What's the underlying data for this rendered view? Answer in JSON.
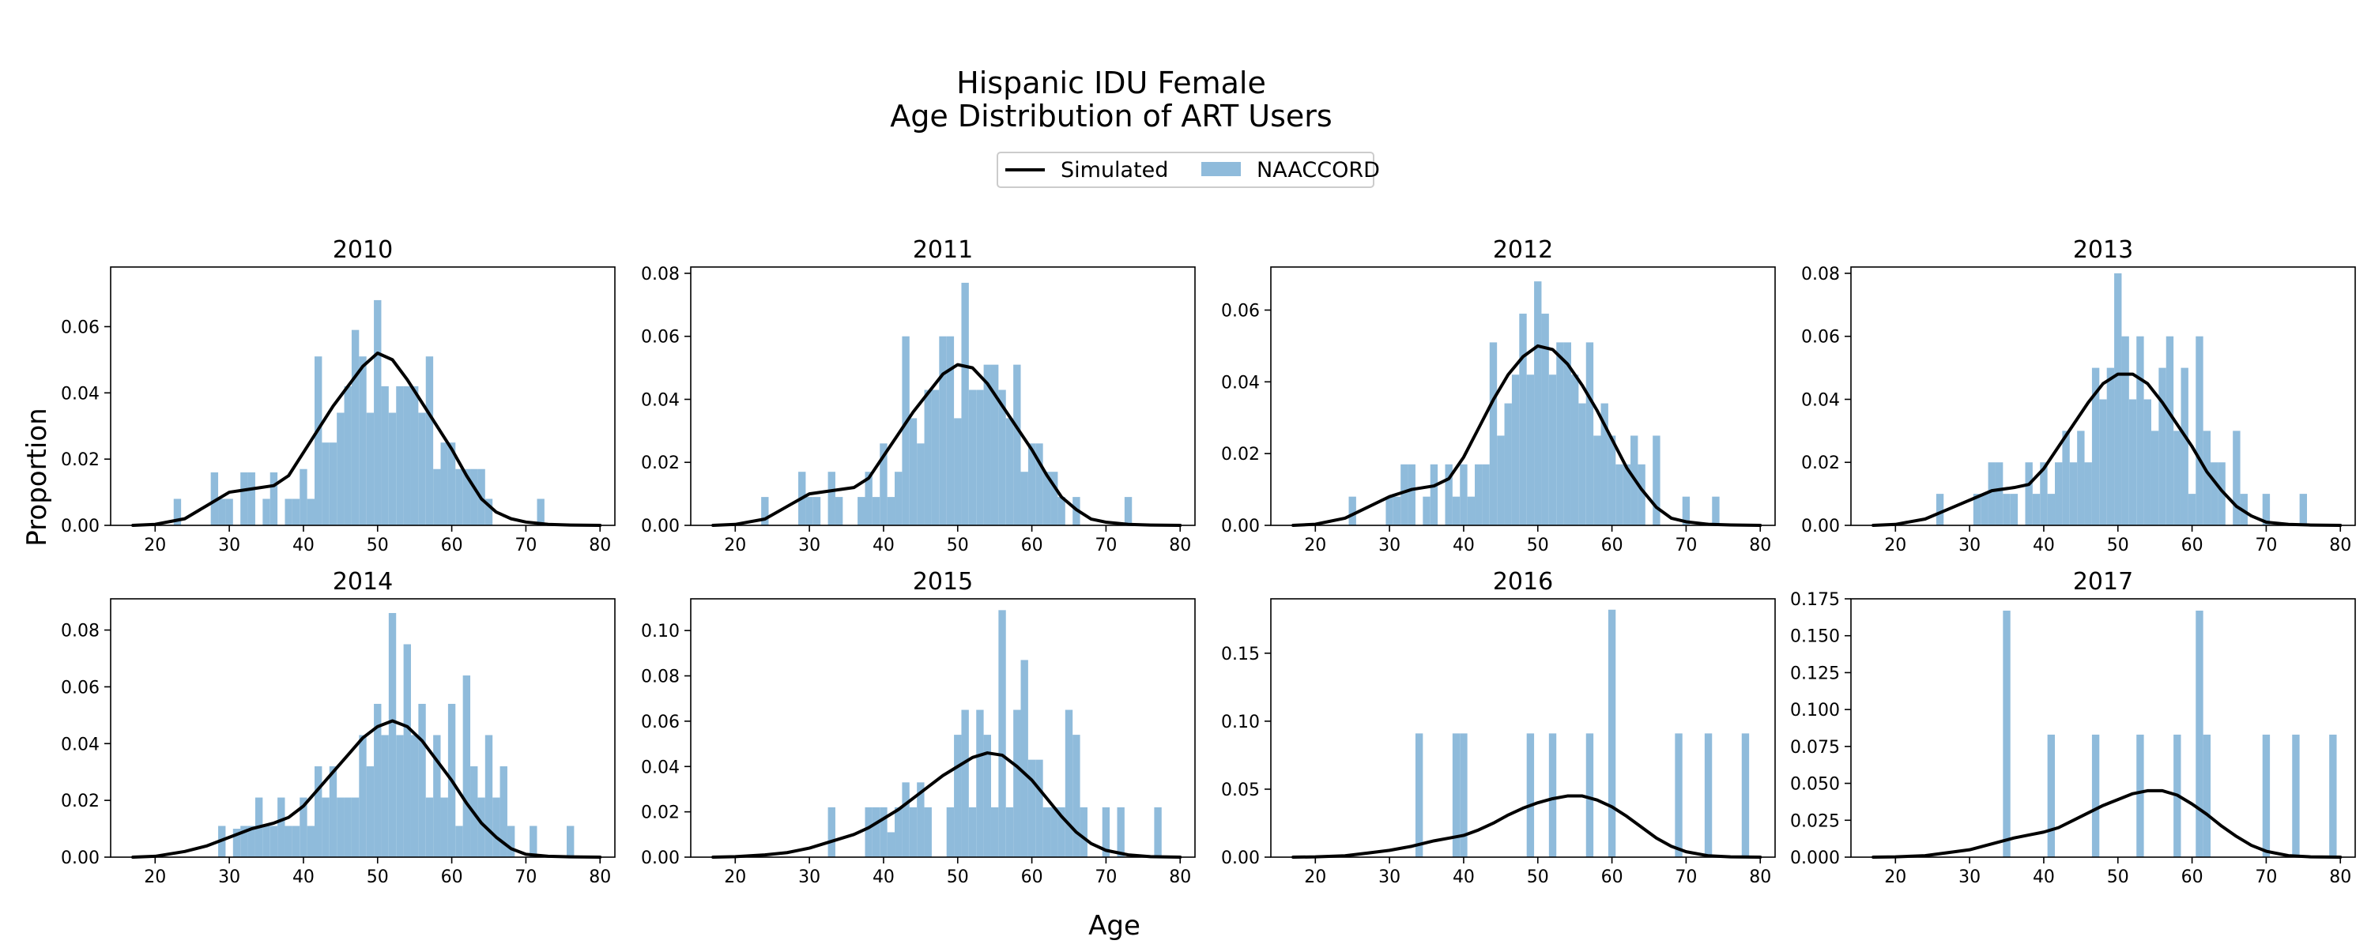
{
  "figure": {
    "title_lines": [
      "Hispanic IDU Female",
      "Age Distribution of ART Users"
    ],
    "xlabel": "Age",
    "ylabel": "Proportion"
  },
  "legend": {
    "placement": "top-center",
    "entries": [
      {
        "label": "Simulated",
        "kind": "line",
        "color": "#000000"
      },
      {
        "label": "NAACCORD",
        "kind": "bar",
        "color": "#8fbbdb"
      }
    ]
  },
  "colors": {
    "bar": "#8fbbdb",
    "line": "#000000",
    "axes": "#000000"
  },
  "chart_data": [
    {
      "type": "bar",
      "title": "2010",
      "xlim": [
        14,
        82
      ],
      "ylim": [
        0,
        0.078
      ],
      "x_ticks": [
        "20",
        "30",
        "40",
        "50",
        "60",
        "70",
        "80"
      ],
      "y_ticks": [
        "0.00",
        "0.02",
        "0.04",
        "0.06"
      ],
      "bars": {
        "x": [
          23,
          28,
          29,
          30,
          32,
          33,
          35,
          36,
          38,
          39,
          40,
          41,
          42,
          43,
          44,
          45,
          46,
          47,
          48,
          49,
          50,
          51,
          52,
          53,
          54,
          55,
          56,
          57,
          58,
          59,
          60,
          61,
          62,
          63,
          64,
          65,
          72
        ],
        "y": [
          0.008,
          0.016,
          0.008,
          0.008,
          0.016,
          0.016,
          0.008,
          0.016,
          0.008,
          0.008,
          0.017,
          0.008,
          0.051,
          0.025,
          0.025,
          0.034,
          0.042,
          0.059,
          0.051,
          0.034,
          0.068,
          0.042,
          0.034,
          0.042,
          0.042,
          0.042,
          0.034,
          0.051,
          0.017,
          0.025,
          0.025,
          0.017,
          0.017,
          0.017,
          0.017,
          0.008,
          0.008
        ]
      },
      "line": {
        "x": [
          17,
          20,
          24,
          27,
          30,
          33,
          36,
          38,
          40,
          42,
          44,
          46,
          48,
          50,
          52,
          54,
          56,
          58,
          60,
          62,
          64,
          66,
          68,
          70,
          73,
          76,
          80
        ],
        "y": [
          0,
          0.0003,
          0.002,
          0.006,
          0.01,
          0.011,
          0.012,
          0.015,
          0.022,
          0.029,
          0.036,
          0.042,
          0.048,
          0.052,
          0.05,
          0.044,
          0.037,
          0.03,
          0.023,
          0.015,
          0.008,
          0.004,
          0.002,
          0.001,
          0.0003,
          0.0001,
          0
        ]
      }
    },
    {
      "type": "bar",
      "title": "2011",
      "xlim": [
        14,
        82
      ],
      "ylim": [
        0,
        0.082
      ],
      "x_ticks": [
        "20",
        "30",
        "40",
        "50",
        "60",
        "70",
        "80"
      ],
      "y_ticks": [
        "0.00",
        "0.02",
        "0.04",
        "0.06",
        "0.08"
      ],
      "bars": {
        "x": [
          24,
          29,
          30,
          31,
          33,
          34,
          37,
          38,
          39,
          40,
          41,
          42,
          43,
          44,
          45,
          46,
          47,
          48,
          49,
          50,
          51,
          52,
          53,
          54,
          55,
          56,
          57,
          58,
          59,
          60,
          61,
          62,
          63,
          64,
          66,
          73
        ],
        "y": [
          0.009,
          0.017,
          0.009,
          0.009,
          0.017,
          0.009,
          0.009,
          0.017,
          0.009,
          0.026,
          0.009,
          0.017,
          0.06,
          0.034,
          0.026,
          0.043,
          0.043,
          0.06,
          0.06,
          0.034,
          0.077,
          0.043,
          0.043,
          0.051,
          0.051,
          0.043,
          0.034,
          0.051,
          0.017,
          0.026,
          0.026,
          0.017,
          0.017,
          0.009,
          0.009,
          0.009
        ]
      },
      "line": {
        "x": [
          17,
          20,
          24,
          27,
          30,
          33,
          36,
          38,
          40,
          42,
          44,
          46,
          48,
          50,
          52,
          54,
          56,
          58,
          60,
          62,
          64,
          66,
          68,
          70,
          73,
          76,
          80
        ],
        "y": [
          0,
          0.0003,
          0.002,
          0.006,
          0.01,
          0.011,
          0.012,
          0.015,
          0.022,
          0.029,
          0.036,
          0.042,
          0.048,
          0.051,
          0.05,
          0.045,
          0.038,
          0.031,
          0.024,
          0.016,
          0.009,
          0.005,
          0.002,
          0.001,
          0.0003,
          0.0001,
          0
        ]
      }
    },
    {
      "type": "bar",
      "title": "2012",
      "xlim": [
        14,
        82
      ],
      "ylim": [
        0,
        0.072
      ],
      "x_ticks": [
        "20",
        "30",
        "40",
        "50",
        "60",
        "70",
        "80"
      ],
      "y_ticks": [
        "0.00",
        "0.02",
        "0.04",
        "0.06"
      ],
      "bars": {
        "x": [
          25,
          30,
          31,
          32,
          33,
          35,
          36,
          38,
          39,
          40,
          41,
          42,
          43,
          44,
          45,
          46,
          47,
          48,
          49,
          50,
          51,
          52,
          53,
          54,
          55,
          56,
          57,
          58,
          59,
          60,
          61,
          62,
          63,
          64,
          66,
          70,
          74
        ],
        "y": [
          0.008,
          0.008,
          0.008,
          0.017,
          0.017,
          0.008,
          0.017,
          0.017,
          0.008,
          0.017,
          0.008,
          0.017,
          0.017,
          0.051,
          0.025,
          0.034,
          0.042,
          0.059,
          0.042,
          0.068,
          0.059,
          0.042,
          0.051,
          0.051,
          0.042,
          0.034,
          0.051,
          0.025,
          0.034,
          0.025,
          0.017,
          0.017,
          0.025,
          0.017,
          0.025,
          0.008,
          0.008
        ]
      },
      "line": {
        "x": [
          17,
          20,
          24,
          27,
          30,
          33,
          36,
          38,
          40,
          42,
          44,
          46,
          48,
          50,
          52,
          54,
          56,
          58,
          60,
          62,
          64,
          66,
          68,
          70,
          73,
          76,
          80
        ],
        "y": [
          0,
          0.0003,
          0.002,
          0.005,
          0.008,
          0.01,
          0.011,
          0.013,
          0.019,
          0.027,
          0.035,
          0.042,
          0.047,
          0.05,
          0.049,
          0.045,
          0.039,
          0.032,
          0.024,
          0.016,
          0.01,
          0.005,
          0.002,
          0.001,
          0.0003,
          0.0001,
          0
        ]
      }
    },
    {
      "type": "bar",
      "title": "2013",
      "xlim": [
        14,
        82
      ],
      "ylim": [
        0,
        0.082
      ],
      "x_ticks": [
        "20",
        "30",
        "40",
        "50",
        "60",
        "70",
        "80"
      ],
      "y_ticks": [
        "0.00",
        "0.02",
        "0.04",
        "0.06",
        "0.08"
      ],
      "bars": {
        "x": [
          26,
          31,
          32,
          33,
          34,
          35,
          36,
          38,
          39,
          40,
          41,
          42,
          43,
          44,
          45,
          46,
          47,
          48,
          49,
          50,
          51,
          52,
          53,
          54,
          55,
          56,
          57,
          58,
          59,
          60,
          61,
          62,
          63,
          64,
          66,
          67,
          70,
          75
        ],
        "y": [
          0.01,
          0.01,
          0.01,
          0.02,
          0.02,
          0.01,
          0.01,
          0.02,
          0.01,
          0.02,
          0.01,
          0.02,
          0.03,
          0.02,
          0.03,
          0.02,
          0.05,
          0.04,
          0.05,
          0.08,
          0.06,
          0.04,
          0.06,
          0.04,
          0.03,
          0.05,
          0.06,
          0.03,
          0.05,
          0.01,
          0.06,
          0.03,
          0.02,
          0.02,
          0.03,
          0.01,
          0.01,
          0.01
        ]
      },
      "line": {
        "x": [
          17,
          20,
          24,
          27,
          30,
          33,
          36,
          38,
          40,
          42,
          44,
          46,
          48,
          50,
          52,
          54,
          56,
          58,
          60,
          62,
          64,
          66,
          68,
          70,
          73,
          76,
          80
        ],
        "y": [
          0,
          0.0003,
          0.002,
          0.005,
          0.008,
          0.011,
          0.012,
          0.013,
          0.018,
          0.025,
          0.032,
          0.039,
          0.045,
          0.048,
          0.048,
          0.045,
          0.039,
          0.032,
          0.025,
          0.017,
          0.011,
          0.006,
          0.003,
          0.001,
          0.0003,
          0.0001,
          0
        ]
      }
    },
    {
      "type": "bar",
      "title": "2014",
      "xlim": [
        14,
        82
      ],
      "ylim": [
        0,
        0.091
      ],
      "x_ticks": [
        "20",
        "30",
        "40",
        "50",
        "60",
        "70",
        "80"
      ],
      "y_ticks": [
        "0.00",
        "0.02",
        "0.04",
        "0.06",
        "0.08"
      ],
      "bars": {
        "x": [
          29,
          31,
          32,
          33,
          34,
          35,
          36,
          37,
          38,
          39,
          40,
          41,
          42,
          43,
          44,
          45,
          46,
          47,
          48,
          49,
          50,
          51,
          52,
          53,
          54,
          55,
          56,
          57,
          58,
          59,
          60,
          61,
          62,
          63,
          64,
          65,
          66,
          67,
          68,
          71,
          76
        ],
        "y": [
          0.011,
          0.01,
          0.011,
          0.011,
          0.021,
          0.011,
          0.011,
          0.021,
          0.011,
          0.011,
          0.021,
          0.011,
          0.032,
          0.021,
          0.032,
          0.021,
          0.021,
          0.021,
          0.043,
          0.032,
          0.054,
          0.043,
          0.086,
          0.043,
          0.075,
          0.043,
          0.054,
          0.021,
          0.043,
          0.021,
          0.054,
          0.011,
          0.064,
          0.032,
          0.021,
          0.043,
          0.021,
          0.032,
          0.011,
          0.011,
          0.011
        ]
      },
      "line": {
        "x": [
          17,
          20,
          24,
          27,
          30,
          33,
          36,
          38,
          40,
          42,
          44,
          46,
          48,
          50,
          52,
          54,
          56,
          58,
          60,
          62,
          64,
          66,
          68,
          70,
          73,
          76,
          80
        ],
        "y": [
          0,
          0.0003,
          0.002,
          0.004,
          0.007,
          0.01,
          0.012,
          0.014,
          0.018,
          0.024,
          0.03,
          0.036,
          0.042,
          0.046,
          0.048,
          0.046,
          0.041,
          0.034,
          0.027,
          0.019,
          0.012,
          0.007,
          0.003,
          0.001,
          0.0003,
          0.0001,
          0
        ]
      }
    },
    {
      "type": "bar",
      "title": "2015",
      "xlim": [
        14,
        82
      ],
      "ylim": [
        0,
        0.114
      ],
      "x_ticks": [
        "20",
        "30",
        "40",
        "50",
        "60",
        "70",
        "80"
      ],
      "y_ticks": [
        "0.00",
        "0.02",
        "0.04",
        "0.06",
        "0.08",
        "0.10"
      ],
      "bars": {
        "x": [
          33,
          38,
          39,
          40,
          41,
          42,
          43,
          44,
          45,
          46,
          49,
          50,
          51,
          52,
          53,
          54,
          55,
          56,
          57,
          58,
          59,
          60,
          61,
          62,
          63,
          64,
          65,
          66,
          67,
          70,
          72,
          77
        ],
        "y": [
          0.022,
          0.022,
          0.022,
          0.022,
          0.011,
          0.022,
          0.033,
          0.022,
          0.033,
          0.022,
          0.022,
          0.054,
          0.065,
          0.022,
          0.065,
          0.054,
          0.022,
          0.109,
          0.022,
          0.065,
          0.087,
          0.043,
          0.043,
          0.022,
          0.022,
          0.022,
          0.065,
          0.054,
          0.022,
          0.022,
          0.022,
          0.022
        ]
      },
      "line": {
        "x": [
          17,
          20,
          24,
          27,
          30,
          33,
          36,
          38,
          40,
          42,
          44,
          46,
          48,
          50,
          52,
          54,
          56,
          58,
          60,
          62,
          64,
          66,
          68,
          70,
          73,
          76,
          80
        ],
        "y": [
          0,
          0.0002,
          0.001,
          0.002,
          0.004,
          0.007,
          0.01,
          0.013,
          0.017,
          0.021,
          0.026,
          0.031,
          0.036,
          0.04,
          0.044,
          0.046,
          0.045,
          0.04,
          0.034,
          0.026,
          0.018,
          0.011,
          0.006,
          0.003,
          0.001,
          0.0002,
          0
        ]
      }
    },
    {
      "type": "bar",
      "title": "2016",
      "xlim": [
        14,
        82
      ],
      "ylim": [
        0,
        0.19
      ],
      "x_ticks": [
        "20",
        "30",
        "40",
        "50",
        "60",
        "70",
        "80"
      ],
      "y_ticks": [
        "0.00",
        "0.05",
        "0.10",
        "0.15"
      ],
      "bars": {
        "x": [
          34,
          39,
          40,
          49,
          52,
          57,
          60,
          69,
          73,
          78
        ],
        "y": [
          0.091,
          0.091,
          0.091,
          0.091,
          0.091,
          0.091,
          0.182,
          0.091,
          0.091,
          0.091
        ]
      },
      "line": {
        "x": [
          17,
          20,
          24,
          27,
          30,
          33,
          36,
          38,
          40,
          42,
          44,
          46,
          48,
          50,
          52,
          54,
          56,
          58,
          60,
          62,
          64,
          66,
          68,
          70,
          73,
          76,
          80
        ],
        "y": [
          0,
          0.0002,
          0.001,
          0.003,
          0.005,
          0.008,
          0.012,
          0.014,
          0.016,
          0.02,
          0.025,
          0.031,
          0.036,
          0.04,
          0.043,
          0.045,
          0.045,
          0.042,
          0.037,
          0.03,
          0.022,
          0.014,
          0.008,
          0.004,
          0.001,
          0.0002,
          0
        ]
      }
    },
    {
      "type": "bar",
      "title": "2017",
      "xlim": [
        14,
        82
      ],
      "ylim": [
        0,
        0.175
      ],
      "x_ticks": [
        "20",
        "30",
        "40",
        "50",
        "60",
        "70",
        "80"
      ],
      "y_ticks": [
        "0.000",
        "0.025",
        "0.050",
        "0.075",
        "0.100",
        "0.125",
        "0.150",
        "0.175"
      ],
      "bars": {
        "x": [
          35,
          41,
          47,
          53,
          58,
          61,
          62,
          70,
          74,
          79
        ],
        "y": [
          0.167,
          0.083,
          0.083,
          0.083,
          0.083,
          0.167,
          0.083,
          0.083,
          0.083,
          0.083
        ]
      },
      "line": {
        "x": [
          17,
          20,
          24,
          27,
          30,
          33,
          36,
          38,
          40,
          42,
          44,
          46,
          48,
          50,
          52,
          54,
          56,
          58,
          60,
          62,
          64,
          66,
          68,
          70,
          73,
          76,
          80
        ],
        "y": [
          0,
          0.0002,
          0.001,
          0.003,
          0.005,
          0.009,
          0.013,
          0.015,
          0.017,
          0.02,
          0.025,
          0.03,
          0.035,
          0.039,
          0.043,
          0.045,
          0.045,
          0.042,
          0.036,
          0.029,
          0.021,
          0.014,
          0.008,
          0.004,
          0.001,
          0.0002,
          0
        ]
      }
    }
  ]
}
